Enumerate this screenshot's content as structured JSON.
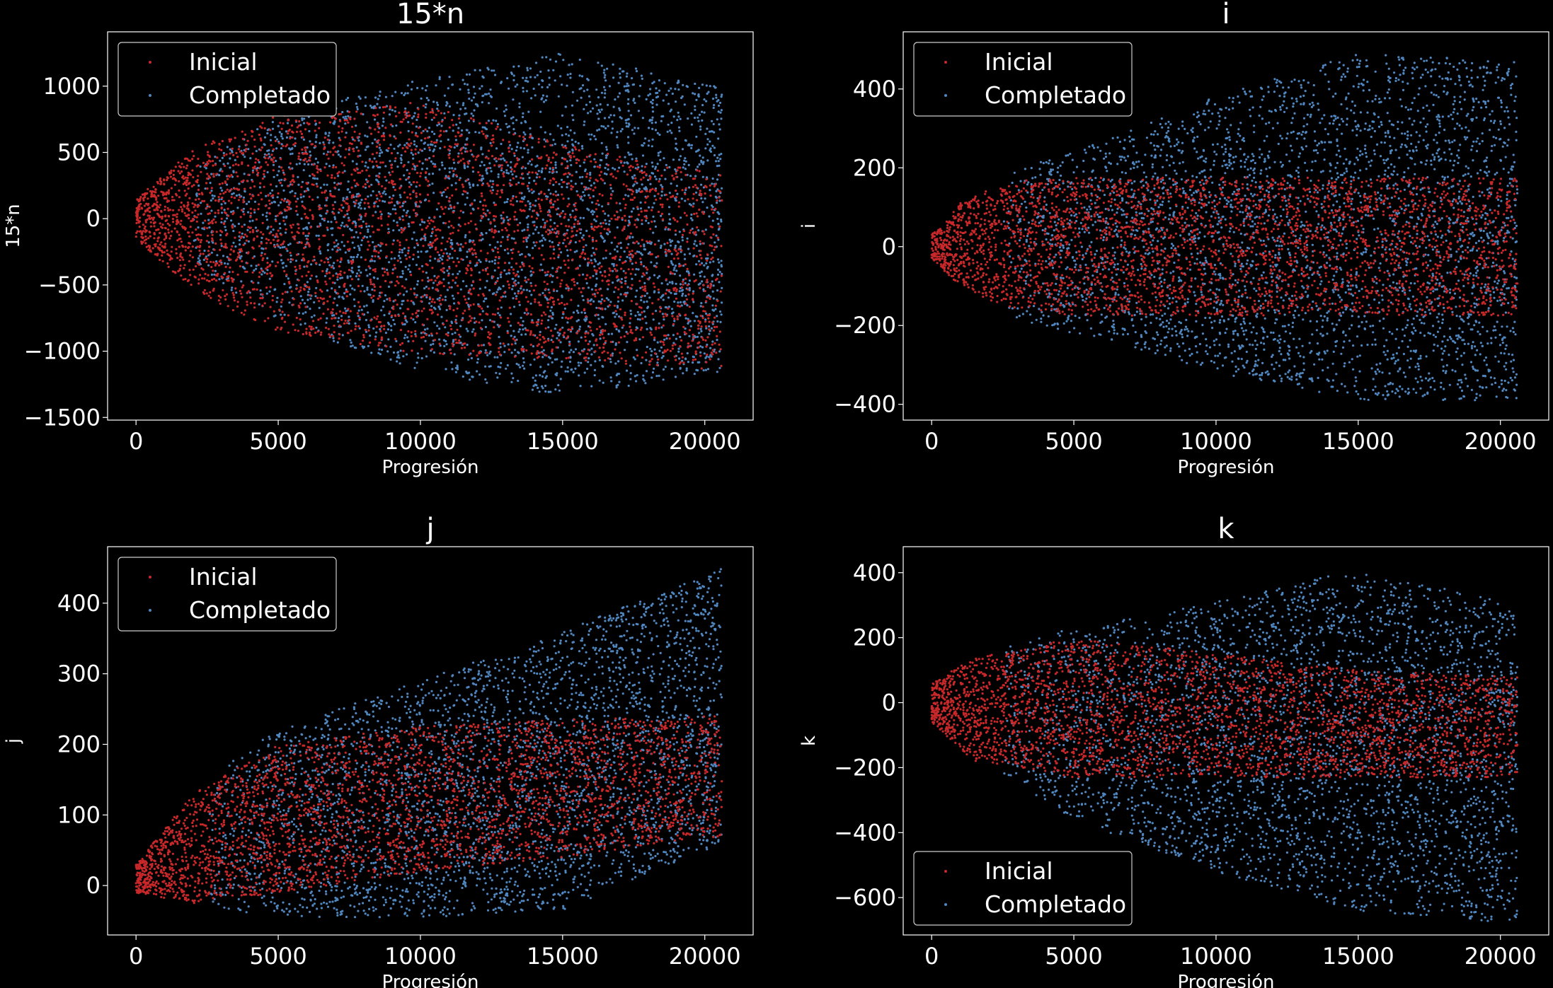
{
  "figure": {
    "background": "#000000",
    "foreground": "#ffffff"
  },
  "series_colors": {
    "Inicial": "#c8282a",
    "Completado": "#4f86bf"
  },
  "chart_data": [
    {
      "type": "scatter",
      "title": "15*n",
      "xlabel": "Progresión",
      "ylabel": "15*n",
      "xlim": [
        -1000,
        21700
      ],
      "ylim": [
        -1520,
        1410
      ],
      "xticks": [
        0,
        5000,
        10000,
        15000,
        20000
      ],
      "yticks": [
        -1500,
        -1000,
        -500,
        0,
        500,
        1000
      ],
      "legend": {
        "placement": "top-left",
        "entries": [
          "Inicial",
          "Completado"
        ]
      },
      "series": [
        {
          "name": "Inicial",
          "color": "#c8282a",
          "envelope": {
            "x": [
              0,
              2000,
              5000,
              10000,
              15000,
              20600
            ],
            "upper": [
              150,
              520,
              790,
              880,
              560,
              330
            ],
            "lower": [
              -150,
              -540,
              -860,
              -1020,
              -1060,
              -1150
            ]
          }
        },
        {
          "name": "Completado",
          "color": "#4f86bf",
          "envelope": {
            "x": [
              2000,
              5000,
              10000,
              15000,
              20600
            ],
            "upper": [
              380,
              780,
              1050,
              1250,
              1000
            ],
            "lower": [
              -350,
              -780,
              -1150,
              -1340,
              -1160
            ]
          }
        }
      ]
    },
    {
      "type": "scatter",
      "title": "i",
      "xlabel": "Progresión",
      "ylabel": "i",
      "xlim": [
        -1000,
        21700
      ],
      "ylim": [
        -440,
        545
      ],
      "xticks": [
        0,
        5000,
        10000,
        15000,
        20000
      ],
      "yticks": [
        -400,
        -200,
        0,
        200,
        400
      ],
      "legend": {
        "placement": "top-left",
        "entries": [
          "Inicial",
          "Completado"
        ]
      },
      "series": [
        {
          "name": "Inicial",
          "color": "#c8282a",
          "envelope": {
            "x": [
              0,
              1000,
              2500,
              5000,
              10000,
              20600
            ],
            "upper": [
              30,
              110,
              165,
              175,
              175,
              175
            ],
            "lower": [
              -30,
              -100,
              -150,
              -175,
              -175,
              -175
            ]
          }
        },
        {
          "name": "Completado",
          "color": "#4f86bf",
          "envelope": {
            "x": [
              2500,
              5000,
              10000,
              15000,
              20600
            ],
            "upper": [
              185,
              240,
              380,
              490,
              470
            ],
            "lower": [
              -175,
              -220,
              -320,
              -390,
              -390
            ]
          }
        }
      ]
    },
    {
      "type": "scatter",
      "title": "j",
      "xlabel": "Progresión",
      "ylabel": "j",
      "xlim": [
        -1000,
        21700
      ],
      "ylim": [
        -70,
        480
      ],
      "xticks": [
        0,
        5000,
        10000,
        15000,
        20000
      ],
      "yticks": [
        0,
        100,
        200,
        300,
        400
      ],
      "legend": {
        "placement": "top-left",
        "entries": [
          "Inicial",
          "Completado"
        ]
      },
      "series": [
        {
          "name": "Inicial",
          "color": "#c8282a",
          "envelope": {
            "x": [
              0,
              2000,
              5000,
              10000,
              15000,
              20600
            ],
            "upper": [
              30,
              130,
              200,
              225,
              235,
              240
            ],
            "lower": [
              -10,
              -25,
              -10,
              20,
              40,
              70
            ]
          }
        },
        {
          "name": "Completado",
          "color": "#4f86bf",
          "envelope": {
            "x": [
              2500,
              5000,
              10000,
              15000,
              20600
            ],
            "upper": [
              160,
              220,
              290,
              360,
              450
            ],
            "lower": [
              -30,
              -45,
              -45,
              -35,
              60
            ]
          }
        }
      ]
    },
    {
      "type": "scatter",
      "title": "k",
      "xlabel": "Progresión",
      "ylabel": "k",
      "xlim": [
        -1000,
        21700
      ],
      "ylim": [
        -715,
        480
      ],
      "xticks": [
        0,
        5000,
        10000,
        15000,
        20000
      ],
      "yticks": [
        -600,
        -400,
        -200,
        0,
        200,
        400
      ],
      "legend": {
        "placement": "lower-left",
        "entries": [
          "Inicial",
          "Completado"
        ]
      },
      "series": [
        {
          "name": "Inicial",
          "color": "#c8282a",
          "envelope": {
            "x": [
              0,
              1500,
              5000,
              10000,
              15000,
              20600
            ],
            "upper": [
              60,
              140,
              200,
              150,
              100,
              80
            ],
            "lower": [
              -60,
              -180,
              -230,
              -230,
              -230,
              -230
            ]
          }
        },
        {
          "name": "Completado",
          "color": "#4f86bf",
          "envelope": {
            "x": [
              2500,
              5000,
              10000,
              15000,
              20600
            ],
            "upper": [
              170,
              230,
              310,
              410,
              300
            ],
            "lower": [
              -220,
              -360,
              -520,
              -640,
              -680
            ]
          }
        }
      ]
    }
  ]
}
